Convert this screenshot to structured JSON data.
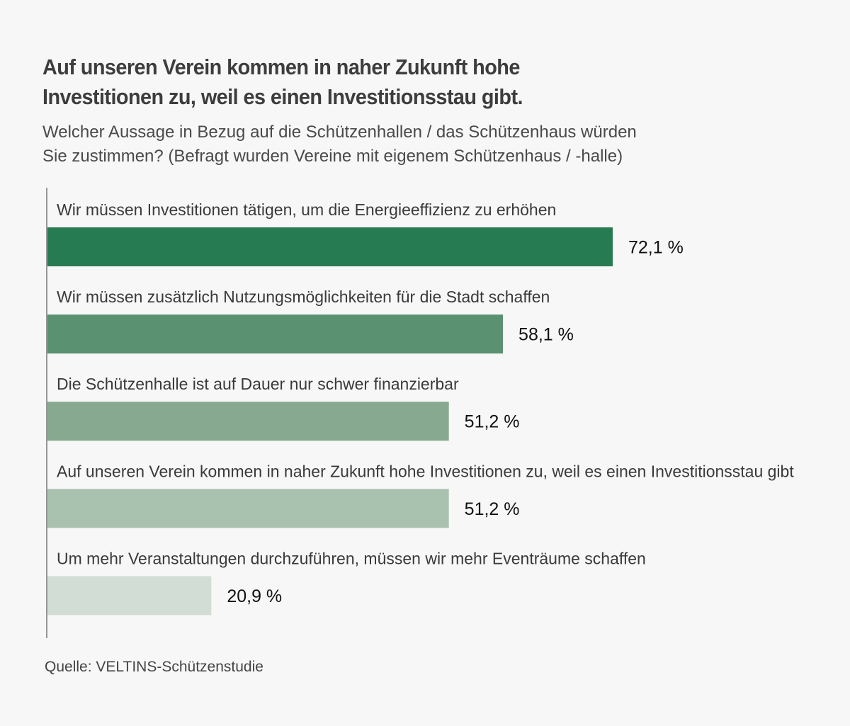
{
  "chart_data": {
    "type": "bar",
    "orientation": "horizontal",
    "title_lines": [
      "Auf unseren Verein kommen in naher Zukunft hohe",
      "Investitionen zu, weil es einen Investitionsstau gibt."
    ],
    "subtitle_lines": [
      "Welcher Aussage in Bezug auf die Schützenhallen / das Schützenhaus würden",
      "Sie zustimmen? (Befragt wurden Vereine mit eigenem Schützenhaus / -halle)"
    ],
    "categories": [
      "Wir müssen Investitionen tätigen, um die Energieeffizienz zu erhöhen",
      "Wir müssen zusätzlich Nutzungsmöglichkeiten für die Stadt schaffen",
      "Die Schützenhalle ist auf Dauer nur schwer finanzierbar",
      "Auf unseren Verein kommen in naher Zukunft hohe Investitionen zu, weil es einen Investitionsstau gibt",
      "Um mehr Veranstaltungen durchzuführen, müssen wir mehr Eventräume schaffen"
    ],
    "values": [
      72.1,
      58.1,
      51.2,
      51.2,
      20.9
    ],
    "value_labels": [
      "72,1 %",
      "58,1 %",
      "51,2 %",
      "51,2 %",
      "20,9 %"
    ],
    "colors": [
      "#277b52",
      "#5a9171",
      "#87a98f",
      "#a9c2b0",
      "#d2ddd5"
    ],
    "xlim": [
      0,
      100
    ],
    "unit": "%",
    "grid": false,
    "legend": "none"
  },
  "source": "Quelle: VELTINS-Schützenstudie"
}
